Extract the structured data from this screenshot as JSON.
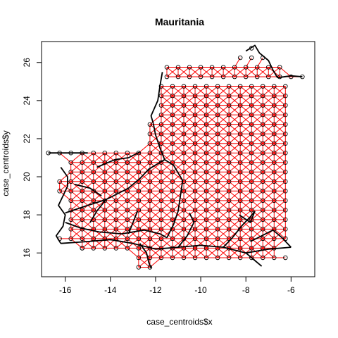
{
  "chart_data": {
    "type": "scatter",
    "title": "Mauritania",
    "xlabel": "case_centroids$x",
    "ylabel": "case_centroids$y",
    "xlim": [
      -17.05,
      -4.95
    ],
    "ylim": [
      14.75,
      27.1
    ],
    "x_ticks": [
      -16,
      -14,
      -12,
      -10,
      -8,
      -6
    ],
    "y_ticks": [
      16,
      18,
      20,
      22,
      24,
      26
    ],
    "x_tick_labels": [
      "-16",
      "-14",
      "-12",
      "-10",
      "-8",
      "-6"
    ],
    "y_tick_labels": [
      "16",
      "18",
      "20",
      "22",
      "24",
      "26"
    ],
    "grid_spacing": 0.5,
    "colors": {
      "grid_edges": "#ff0000",
      "roads": "#000000",
      "points": "#000000",
      "axes": "#000000",
      "background": "#ffffff"
    },
    "grid_rows": [
      {
        "y": 25.75,
        "x": [
          -11.5,
          -6.5
        ]
      },
      {
        "y": 25.25,
        "x": [
          -11.5,
          -5.5
        ]
      },
      {
        "y": 24.75,
        "x": [
          -11.75,
          -6.25
        ]
      },
      {
        "y": 24.25,
        "x": [
          -11.75,
          -6.25
        ]
      },
      {
        "y": 23.75,
        "x": [
          -11.75,
          -6.25
        ]
      },
      {
        "y": 23.25,
        "x": [
          -11.75,
          -6.25
        ]
      },
      {
        "y": 22.75,
        "x": [
          -12.25,
          -6.25
        ]
      },
      {
        "y": 22.25,
        "x": [
          -12.25,
          -6.25
        ]
      },
      {
        "y": 21.75,
        "x": [
          -12.25,
          -6.25
        ]
      },
      {
        "y": 21.25,
        "x": [
          -15.25,
          -6.25
        ]
      },
      {
        "y": 20.75,
        "x": [
          -15.75,
          -6.25
        ]
      },
      {
        "y": 20.25,
        "x": [
          -15.75,
          -6.25
        ]
      },
      {
        "y": 19.75,
        "x": [
          -16.25,
          -6.25
        ]
      },
      {
        "y": 19.25,
        "x": [
          -16.25,
          -6.25
        ]
      },
      {
        "y": 18.75,
        "x": [
          -15.75,
          -6.25
        ]
      },
      {
        "y": 18.25,
        "x": [
          -15.75,
          -6.25
        ]
      },
      {
        "y": 17.75,
        "x": [
          -15.75,
          -6.25
        ]
      },
      {
        "y": 17.25,
        "x": [
          -15.75,
          -6.25
        ]
      },
      {
        "y": 16.75,
        "x": [
          -15.75,
          -6.25
        ]
      },
      {
        "y": 16.25,
        "x": [
          -15.25,
          -6.75
        ]
      },
      {
        "y": 15.75,
        "x": [
          -12.75,
          -6.75
        ]
      },
      {
        "y": 15.25,
        "x": [
          -12.75,
          -12.25
        ]
      }
    ],
    "extra_points": [
      [
        -7.75,
        26.25
      ],
      [
        -7.25,
        26.25
      ],
      [
        -8.25,
        26.25
      ],
      [
        -7.75,
        26.75
      ],
      [
        -16.75,
        21.25
      ],
      [
        -16.25,
        21.25
      ],
      [
        -15.75,
        21.25
      ],
      [
        -13.25,
        20.75
      ],
      [
        -16.25,
        16.75
      ],
      [
        -15.25,
        16.25
      ],
      [
        -6.25,
        15.75
      ],
      [
        -6.25,
        16.75
      ]
    ],
    "roads": [
      [
        [
          -16.2,
          20.5
        ],
        [
          -15.9,
          20.0
        ],
        [
          -15.9,
          19.5
        ],
        [
          -16.1,
          19.0
        ],
        [
          -16.3,
          18.5
        ],
        [
          -16.0,
          18.0
        ],
        [
          -16.1,
          17.4
        ],
        [
          -16.4,
          16.9
        ],
        [
          -16.2,
          16.5
        ]
      ],
      [
        [
          -16.0,
          18.1
        ],
        [
          -15.0,
          18.5
        ],
        [
          -14.2,
          18.8
        ],
        [
          -13.2,
          19.4
        ],
        [
          -12.7,
          19.9
        ],
        [
          -12.3,
          20.4
        ],
        [
          -11.6,
          20.9
        ]
      ],
      [
        [
          -11.6,
          20.9
        ],
        [
          -11.8,
          21.5
        ],
        [
          -12.0,
          22.2
        ],
        [
          -12.1,
          22.8
        ]
      ],
      [
        [
          -11.6,
          20.9
        ],
        [
          -11.2,
          20.6
        ],
        [
          -10.8,
          19.8
        ],
        [
          -10.9,
          19.0
        ],
        [
          -11.0,
          18.2
        ],
        [
          -11.2,
          17.5
        ],
        [
          -11.5,
          16.8
        ]
      ],
      [
        [
          -16.0,
          17.6
        ],
        [
          -15.3,
          17.3
        ],
        [
          -14.5,
          17.1
        ],
        [
          -13.5,
          17.0
        ],
        [
          -12.5,
          17.2
        ],
        [
          -11.8,
          17.0
        ],
        [
          -11.5,
          16.8
        ]
      ],
      [
        [
          -16.2,
          16.5
        ],
        [
          -15.0,
          16.6
        ],
        [
          -14.0,
          16.7
        ],
        [
          -13.0,
          16.5
        ],
        [
          -12.0,
          16.2
        ],
        [
          -11.0,
          16.3
        ],
        [
          -10.0,
          16.4
        ],
        [
          -9.0,
          16.3
        ],
        [
          -8.0,
          16.0
        ],
        [
          -7.0,
          16.2
        ],
        [
          -6.0,
          16.3
        ]
      ],
      [
        [
          -12.7,
          16.5
        ],
        [
          -12.4,
          16.0
        ],
        [
          -12.3,
          15.5
        ],
        [
          -12.2,
          15.2
        ]
      ],
      [
        [
          -11.0,
          16.3
        ],
        [
          -10.6,
          16.9
        ],
        [
          -10.3,
          17.6
        ],
        [
          -10.5,
          18.1
        ]
      ],
      [
        [
          -9.0,
          16.3
        ],
        [
          -8.6,
          16.8
        ],
        [
          -8.2,
          17.4
        ],
        [
          -7.8,
          17.9
        ],
        [
          -7.6,
          18.2
        ]
      ],
      [
        [
          -8.0,
          16.0
        ],
        [
          -7.6,
          15.6
        ],
        [
          -7.3,
          15.3
        ]
      ],
      [
        [
          -6.0,
          16.3
        ],
        [
          -6.4,
          16.8
        ],
        [
          -6.8,
          17.2
        ]
      ],
      [
        [
          -14.6,
          20.5
        ],
        [
          -13.8,
          20.9
        ],
        [
          -13.2,
          21.0
        ],
        [
          -12.7,
          21.3
        ]
      ],
      [
        [
          -15.6,
          19.6
        ],
        [
          -14.9,
          19.4
        ],
        [
          -14.4,
          19.0
        ]
      ],
      [
        [
          -11.7,
          25.5
        ],
        [
          -11.8,
          24.8
        ],
        [
          -11.9,
          24.0
        ],
        [
          -12.2,
          23.2
        ],
        [
          -12.1,
          22.8
        ]
      ],
      [
        [
          -8.0,
          26.6
        ],
        [
          -7.6,
          26.9
        ],
        [
          -7.4,
          26.5
        ],
        [
          -7.0,
          26.1
        ],
        [
          -6.8,
          25.6
        ],
        [
          -6.6,
          25.2
        ]
      ],
      [
        [
          -6.6,
          25.2
        ],
        [
          -6.0,
          25.3
        ],
        [
          -5.5,
          25.25
        ]
      ],
      [
        [
          -15.0,
          21.25
        ],
        [
          -15.6,
          21.25
        ],
        [
          -16.25,
          21.25
        ],
        [
          -16.75,
          21.25
        ]
      ],
      [
        [
          -13.2,
          17.0
        ],
        [
          -13.0,
          17.6
        ],
        [
          -12.8,
          18.2
        ]
      ],
      [
        [
          -14.2,
          18.8
        ],
        [
          -14.6,
          18.2
        ],
        [
          -14.9,
          17.6
        ]
      ],
      [
        [
          -6.8,
          17.2
        ],
        [
          -7.3,
          16.9
        ],
        [
          -7.8,
          16.6
        ]
      ],
      [
        [
          -8.3,
          18.0
        ],
        [
          -7.8,
          17.6
        ],
        [
          -7.6,
          18.2
        ]
      ]
    ]
  }
}
